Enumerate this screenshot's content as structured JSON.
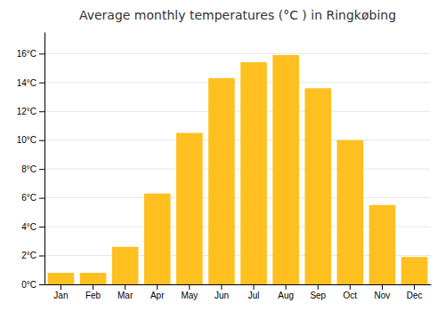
{
  "chart_data": {
    "type": "bar",
    "title": "Average monthly temperatures (°C ) in Ringkøbing",
    "categories": [
      "Jan",
      "Feb",
      "Mar",
      "Apr",
      "May",
      "Jun",
      "Jul",
      "Aug",
      "Sep",
      "Oct",
      "Nov",
      "Dec"
    ],
    "values": [
      0.8,
      0.8,
      2.6,
      6.3,
      10.5,
      14.3,
      15.4,
      15.9,
      13.6,
      10.0,
      5.5,
      1.9
    ],
    "color": "#FFC020",
    "ylim": [
      0,
      17.5
    ],
    "yticks": [
      {
        "value": 0,
        "label": "0°C"
      },
      {
        "value": 2,
        "label": "2°C"
      },
      {
        "value": 4,
        "label": "4°C"
      },
      {
        "value": 6,
        "label": "6°C"
      },
      {
        "value": 8,
        "label": "8°C"
      },
      {
        "value": 10,
        "label": "10°C"
      },
      {
        "value": 12,
        "label": "12°C"
      },
      {
        "value": 14,
        "label": "14°C"
      },
      {
        "value": 16,
        "label": "16°C"
      }
    ],
    "grid": true
  }
}
